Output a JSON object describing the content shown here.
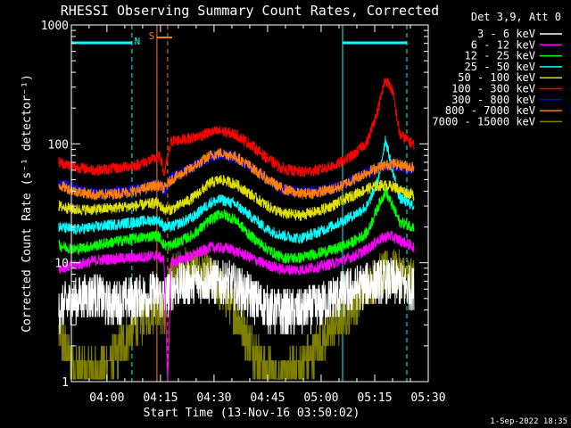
{
  "chart_data": {
    "type": "line",
    "title": "RHESSI Observing Summary Count Rates, Corrected",
    "xlabel": "Start Time (13-Nov-16 03:50:02)",
    "ylabel": "Corrected Count Rate (s⁻¹ detector⁻¹)",
    "ylog": true,
    "xlim": [
      "03:50:02",
      "05:30:00"
    ],
    "ylim": [
      1,
      1000
    ],
    "x_ticks": [
      "04:00",
      "04:15",
      "04:30",
      "04:45",
      "05:00",
      "05:15",
      "05:30"
    ],
    "x_tick_minutes": [
      0,
      15,
      30,
      45,
      60,
      75,
      90
    ],
    "y_ticks": [
      1,
      10,
      100,
      1000
    ],
    "y_tick_labels": [
      "1",
      "10",
      "100",
      "1000"
    ],
    "legend_position": "top-right",
    "legend_header": "Det 3,9, Att 0",
    "timestamp": "1-Sep-2022 18:35",
    "night_label": "N",
    "saa_label": "S",
    "night_bars": [
      {
        "start": "03:50",
        "end": "04:07"
      },
      {
        "start": "05:06",
        "end": "05:24"
      }
    ],
    "series": [
      {
        "name": "3 - 6 keV",
        "color": "#ffffff",
        "gap": [
          0,
          0
        ],
        "values": [
          [
            -13.5,
            4.2
          ],
          [
            -9,
            4.8
          ],
          [
            -3,
            5.5
          ],
          [
            0,
            4.5
          ],
          [
            4,
            4.7
          ],
          [
            8,
            5.0
          ],
          [
            14,
            5.5
          ],
          [
            15,
            5.2
          ],
          [
            16,
            5.0
          ],
          [
            19,
            6.5
          ],
          [
            24,
            6.8
          ],
          [
            29,
            7.0
          ],
          [
            34,
            6.7
          ],
          [
            39,
            5.5
          ],
          [
            44,
            4.3
          ],
          [
            49,
            3.8
          ],
          [
            54,
            3.9
          ],
          [
            59,
            4.3
          ],
          [
            64,
            5.2
          ],
          [
            69,
            6.0
          ],
          [
            75,
            6.8
          ],
          [
            79,
            7.0
          ],
          [
            83,
            6.5
          ],
          [
            86,
            6.0
          ]
        ]
      },
      {
        "name": "6 - 12 keV",
        "color": "#ff00ff",
        "gap": [
          0,
          0
        ],
        "values": [
          [
            -13.5,
            9.0
          ],
          [
            -9,
            9.5
          ],
          [
            -3,
            10.5
          ],
          [
            2,
            10.8
          ],
          [
            8,
            11.0
          ],
          [
            14,
            11.5
          ],
          [
            15,
            11.0
          ],
          [
            16,
            10.5
          ],
          [
            17,
            1.0
          ],
          [
            18,
            10.0
          ],
          [
            24,
            11.5
          ],
          [
            29,
            13.5
          ],
          [
            34,
            13.2
          ],
          [
            39,
            11.5
          ],
          [
            44,
            9.8
          ],
          [
            49,
            8.8
          ],
          [
            54,
            8.7
          ],
          [
            59,
            9.2
          ],
          [
            64,
            10.0
          ],
          [
            69,
            11.3
          ],
          [
            73,
            13.0
          ],
          [
            76,
            15.5
          ],
          [
            79,
            17.0
          ],
          [
            83,
            15.0
          ],
          [
            86,
            13.5
          ]
        ]
      },
      {
        "name": "12 - 25 keV",
        "color": "#00ff00",
        "gap": [
          0,
          0
        ],
        "values": [
          [
            -13.5,
            14
          ],
          [
            -9,
            13
          ],
          [
            -3,
            14
          ],
          [
            2,
            15
          ],
          [
            8,
            16
          ],
          [
            14,
            17
          ],
          [
            15,
            16
          ],
          [
            16,
            14
          ],
          [
            18,
            14
          ],
          [
            24,
            17
          ],
          [
            29,
            23
          ],
          [
            32,
            26
          ],
          [
            36,
            23
          ],
          [
            40,
            17
          ],
          [
            45,
            13
          ],
          [
            49,
            11
          ],
          [
            54,
            11
          ],
          [
            59,
            12
          ],
          [
            64,
            13
          ],
          [
            69,
            15
          ],
          [
            73,
            18
          ],
          [
            76,
            30
          ],
          [
            78,
            40
          ],
          [
            80,
            30
          ],
          [
            82,
            22
          ],
          [
            86,
            20
          ]
        ]
      },
      {
        "name": "25 - 50 keV",
        "color": "#00ffff",
        "gap": [
          0,
          0
        ],
        "values": [
          [
            -13.5,
            20
          ],
          [
            -9,
            19
          ],
          [
            -3,
            20
          ],
          [
            2,
            21
          ],
          [
            8,
            22
          ],
          [
            14,
            23
          ],
          [
            15,
            22
          ],
          [
            16,
            20
          ],
          [
            18,
            20
          ],
          [
            24,
            24
          ],
          [
            29,
            32
          ],
          [
            32,
            34
          ],
          [
            36,
            31
          ],
          [
            40,
            25
          ],
          [
            45,
            19
          ],
          [
            49,
            17
          ],
          [
            54,
            16
          ],
          [
            59,
            18
          ],
          [
            64,
            21
          ],
          [
            69,
            25
          ],
          [
            73,
            30
          ],
          [
            76,
            50
          ],
          [
            78,
            110
          ],
          [
            80,
            60
          ],
          [
            82,
            35
          ],
          [
            86,
            30
          ]
        ]
      },
      {
        "name": "50 - 100 keV",
        "color": "#e0e000",
        "gap": [
          0,
          0
        ],
        "values": [
          [
            -13.5,
            30
          ],
          [
            -9,
            28
          ],
          [
            -3,
            28
          ],
          [
            2,
            29
          ],
          [
            8,
            30
          ],
          [
            14,
            32
          ],
          [
            15,
            30
          ],
          [
            16,
            28
          ],
          [
            18,
            28
          ],
          [
            24,
            35
          ],
          [
            29,
            47
          ],
          [
            32,
            50
          ],
          [
            36,
            46
          ],
          [
            40,
            38
          ],
          [
            45,
            30
          ],
          [
            49,
            26
          ],
          [
            54,
            25
          ],
          [
            59,
            27
          ],
          [
            64,
            31
          ],
          [
            69,
            37
          ],
          [
            73,
            42
          ],
          [
            77,
            45
          ],
          [
            80,
            44
          ],
          [
            83,
            40
          ],
          [
            86,
            37
          ]
        ]
      },
      {
        "name": "100 - 300 keV",
        "color": "#ff0000",
        "gap": [
          0,
          0
        ],
        "values": [
          [
            -13.5,
            70
          ],
          [
            -9,
            64
          ],
          [
            -3,
            60
          ],
          [
            2,
            62
          ],
          [
            8,
            66
          ],
          [
            14,
            76
          ],
          [
            15,
            78
          ],
          [
            16,
            55
          ],
          [
            18,
            105
          ],
          [
            24,
            112
          ],
          [
            29,
            125
          ],
          [
            32,
            128
          ],
          [
            36,
            120
          ],
          [
            40,
            100
          ],
          [
            45,
            75
          ],
          [
            49,
            62
          ],
          [
            54,
            58
          ],
          [
            59,
            60
          ],
          [
            64,
            66
          ],
          [
            69,
            80
          ],
          [
            73,
            105
          ],
          [
            76,
            200
          ],
          [
            78,
            350
          ],
          [
            80,
            280
          ],
          [
            82,
            120
          ],
          [
            86,
            98
          ]
        ]
      },
      {
        "name": "300 - 800 keV",
        "color": "#0000ff",
        "gap": [
          0,
          0
        ],
        "values": [
          [
            -13.5,
            48
          ],
          [
            -9,
            41
          ],
          [
            -3,
            38
          ],
          [
            2,
            39
          ],
          [
            8,
            41
          ],
          [
            14,
            46
          ],
          [
            15,
            45
          ],
          [
            16,
            40
          ],
          [
            18,
            52
          ],
          [
            24,
            64
          ],
          [
            29,
            78
          ],
          [
            32,
            82
          ],
          [
            36,
            76
          ],
          [
            40,
            64
          ],
          [
            45,
            50
          ],
          [
            49,
            42
          ],
          [
            54,
            39
          ],
          [
            59,
            40
          ],
          [
            64,
            43
          ],
          [
            69,
            50
          ],
          [
            73,
            57
          ],
          [
            77,
            64
          ],
          [
            80,
            66
          ],
          [
            83,
            63
          ],
          [
            86,
            60
          ]
        ]
      },
      {
        "name": "800 - 7000 keV",
        "color": "#ff8000",
        "gap": [
          0,
          0
        ],
        "values": [
          [
            -13.5,
            45
          ],
          [
            -9,
            40
          ],
          [
            -3,
            37
          ],
          [
            2,
            38
          ],
          [
            8,
            40
          ],
          [
            14,
            45
          ],
          [
            15,
            44
          ],
          [
            16,
            42
          ],
          [
            18,
            50
          ],
          [
            24,
            63
          ],
          [
            29,
            80
          ],
          [
            32,
            84
          ],
          [
            36,
            78
          ],
          [
            40,
            65
          ],
          [
            45,
            50
          ],
          [
            49,
            42
          ],
          [
            54,
            38
          ],
          [
            59,
            39
          ],
          [
            64,
            42
          ],
          [
            69,
            50
          ],
          [
            73,
            58
          ],
          [
            77,
            65
          ],
          [
            80,
            68
          ],
          [
            83,
            66
          ],
          [
            86,
            63
          ]
        ]
      },
      {
        "name": "7000 - 15000 keV",
        "color": "#808000",
        "gap": [
          0,
          0
        ],
        "values": [
          [
            -13.5,
            2.5
          ],
          [
            -9,
            1.3
          ],
          [
            -3,
            1.2
          ],
          [
            2,
            1.6
          ],
          [
            8,
            3.0
          ],
          [
            14,
            4.5
          ],
          [
            15,
            4.0
          ],
          [
            16,
            3.5
          ],
          [
            18,
            8.0
          ],
          [
            24,
            9.0
          ],
          [
            29,
            7.5
          ],
          [
            34,
            5.0
          ],
          [
            39,
            2.5
          ],
          [
            44,
            1.3
          ],
          [
            49,
            1.1
          ],
          [
            54,
            1.3
          ],
          [
            59,
            2.0
          ],
          [
            64,
            3.0
          ],
          [
            69,
            4.5
          ],
          [
            73,
            6.5
          ],
          [
            77,
            8.0
          ],
          [
            81,
            8.5
          ],
          [
            84,
            7.5
          ],
          [
            86,
            7.0
          ]
        ]
      }
    ]
  }
}
